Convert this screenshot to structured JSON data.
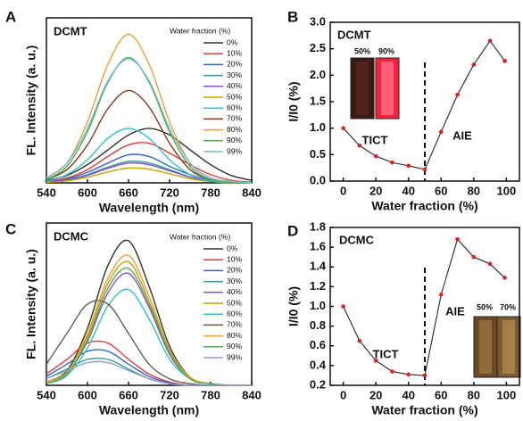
{
  "chart_data": [
    {
      "type": "line",
      "panel_label": "A",
      "title": "DCMT",
      "xlabel": "Wavelength (nm)",
      "ylabel": "FL. Intensity (a. u.)",
      "legend_title": "Water fraction (%)",
      "x": [
        540,
        570,
        600,
        630,
        660,
        690,
        720,
        750,
        780,
        810,
        840
      ],
      "xlim": [
        540,
        840
      ],
      "xticks": [
        540,
        600,
        660,
        720,
        780,
        840
      ],
      "ylim": [
        0,
        100
      ],
      "series": [
        {
          "name": "0%",
          "color": "#333333",
          "values": [
            1.5,
            4.5,
            11,
            20,
            29,
            33,
            29,
            20,
            11,
            4.5,
            1.5
          ]
        },
        {
          "name": "10%",
          "color": "#e03c3c",
          "values": [
            1,
            3,
            8,
            16,
            23,
            24,
            18,
            11,
            5,
            1.5,
            0.4
          ]
        },
        {
          "name": "20%",
          "color": "#3366cc",
          "values": [
            0.6,
            2.3,
            6.4,
            12,
            17,
            16,
            10,
            5,
            1.5,
            0.3,
            0
          ]
        },
        {
          "name": "30%",
          "color": "#2a9d8f",
          "values": [
            0.4,
            1.8,
            5,
            9.5,
            13,
            12,
            8,
            3.6,
            1.2,
            0.3,
            0
          ]
        },
        {
          "name": "40%",
          "color": "#8a4fd8",
          "values": [
            0.4,
            1.6,
            4.5,
            8.8,
            12,
            11,
            7.3,
            3.4,
            1.1,
            0.2,
            0
          ]
        },
        {
          "name": "50%",
          "color": "#c8a000",
          "values": [
            0.3,
            1.2,
            3.4,
            6.6,
            9,
            8.3,
            5.5,
            2.5,
            0.8,
            0.2,
            0
          ]
        },
        {
          "name": "60%",
          "color": "#30c0d0",
          "values": [
            1,
            5,
            14,
            27,
            33,
            27,
            14,
            5,
            1,
            0,
            0
          ]
        },
        {
          "name": "70%",
          "color": "#8b3a1a",
          "values": [
            2,
            8,
            23,
            45,
            56,
            46,
            24,
            8,
            2,
            0,
            0
          ]
        },
        {
          "name": "80%",
          "color": "#f0a030",
          "values": [
            3,
            12,
            37,
            72,
            90,
            72,
            37,
            12,
            3,
            0,
            0
          ]
        },
        {
          "name": "90%",
          "color": "#4caf50",
          "values": [
            2,
            10,
            31,
            61,
            76,
            61,
            31,
            10,
            2,
            0,
            0
          ]
        },
        {
          "name": "99%",
          "color": "#7fb8d8",
          "values": [
            3,
            12,
            33,
            62,
            75,
            62,
            33,
            12,
            3,
            1,
            0
          ]
        }
      ]
    },
    {
      "type": "line",
      "panel_label": "B",
      "title": "DCMT",
      "xlabel": "Water fraction (%)",
      "ylabel": "I/I0 (%)",
      "x": [
        0,
        10,
        20,
        30,
        40,
        50,
        60,
        70,
        80,
        90,
        99
      ],
      "values": [
        1.0,
        0.67,
        0.47,
        0.35,
        0.29,
        0.22,
        0.93,
        1.63,
        2.2,
        2.65,
        2.27
      ],
      "color": "#e02020",
      "line_color": "#333333",
      "vline": 50,
      "annotations": [
        "TICT",
        "AIE"
      ],
      "inset_labels": [
        "50%",
        "90%"
      ],
      "xlim": [
        -8,
        108
      ],
      "xticks": [
        0,
        20,
        40,
        60,
        80,
        100
      ],
      "ylim": [
        0,
        3
      ],
      "yticks": [
        {
          "value": 0,
          "label": "0.0"
        },
        0.5,
        {
          "value": 1,
          "label": "1.0"
        },
        1.5,
        {
          "value": 2,
          "label": "2.0"
        },
        2.5,
        {
          "value": 3,
          "label": "3.0"
        }
      ]
    },
    {
      "type": "line",
      "panel_label": "C",
      "title": "DCMC",
      "xlabel": "Wavelength (nm)",
      "ylabel": "FL. Intensity (a. u.)",
      "legend_title": "Water fraction (%)",
      "x": [
        540,
        570,
        600,
        630,
        660,
        690,
        720,
        750,
        780,
        810,
        840
      ],
      "xlim": [
        540,
        840
      ],
      "xticks": [
        540,
        600,
        660,
        720,
        780,
        840
      ],
      "ylim": [
        0,
        100
      ],
      "series": [
        {
          "name": "0%",
          "color": "#333333",
          "values": [
            2,
            9,
            35,
            74,
            89,
            61,
            24,
            5,
            1,
            0,
            0
          ]
        },
        {
          "name": "10%",
          "color": "#e03c3c",
          "values": [
            7,
            16,
            26,
            26,
            16,
            7,
            2,
            0,
            0,
            0,
            0
          ]
        },
        {
          "name": "20%",
          "color": "#3366cc",
          "values": [
            5.5,
            13,
            21,
            21,
            13,
            5.5,
            1.5,
            0,
            0,
            0,
            0
          ]
        },
        {
          "name": "30%",
          "color": "#2a9d8f",
          "values": [
            4,
            10,
            16,
            16,
            10,
            4,
            1,
            0,
            0,
            0,
            0
          ]
        },
        {
          "name": "40%",
          "color": "#8a4fd8",
          "values": [
            1,
            7,
            27,
            57,
            69,
            48,
            19,
            4,
            1,
            0,
            0
          ]
        },
        {
          "name": "50%",
          "color": "#c8a000",
          "values": [
            2,
            8,
            30,
            63,
            76,
            52,
            21,
            5,
            1,
            0,
            0
          ]
        },
        {
          "name": "60%",
          "color": "#30c0d0",
          "values": [
            1,
            6,
            23,
            49,
            59,
            41,
            16,
            4,
            1,
            0,
            0
          ]
        },
        {
          "name": "70%",
          "color": "#6b5a4a",
          "values": [
            13,
            32,
            50,
            50,
            32,
            13,
            4,
            1,
            0,
            0,
            0
          ]
        },
        {
          "name": "80%",
          "color": "#f0a030",
          "values": [
            2,
            8,
            32,
            66,
            80,
            55,
            22,
            5,
            1,
            0,
            0
          ]
        },
        {
          "name": "90%",
          "color": "#4caf50",
          "values": [
            1,
            7,
            28,
            60,
            72,
            50,
            20,
            4,
            1,
            0,
            0
          ]
        },
        {
          "name": "99%",
          "color": "#9a9acc",
          "values": [
            4,
            9,
            14,
            14,
            9,
            4,
            1,
            0,
            0,
            0,
            0
          ]
        }
      ]
    },
    {
      "type": "line",
      "panel_label": "D",
      "title": "DCMC",
      "xlabel": "Water fraction (%)",
      "ylabel": "I/I0 (%)",
      "x": [
        0,
        10,
        20,
        30,
        40,
        50,
        60,
        70,
        80,
        90,
        99
      ],
      "values": [
        1.0,
        0.65,
        0.45,
        0.34,
        0.31,
        0.3,
        1.12,
        1.68,
        1.5,
        1.43,
        1.29
      ],
      "color": "#e02020",
      "line_color": "#333333",
      "vline": 50,
      "annotations": [
        "TICT",
        "AIE"
      ],
      "inset_labels": [
        "50%",
        "70%"
      ],
      "xlim": [
        -8,
        108
      ],
      "xticks": [
        0,
        20,
        40,
        60,
        80,
        100
      ],
      "ylim": [
        0.2,
        1.8
      ],
      "yticks": [
        0.2,
        0.4,
        0.6,
        0.8,
        {
          "value": 1,
          "label": "1.0"
        },
        1.2,
        1.4,
        1.6,
        1.8
      ]
    }
  ]
}
